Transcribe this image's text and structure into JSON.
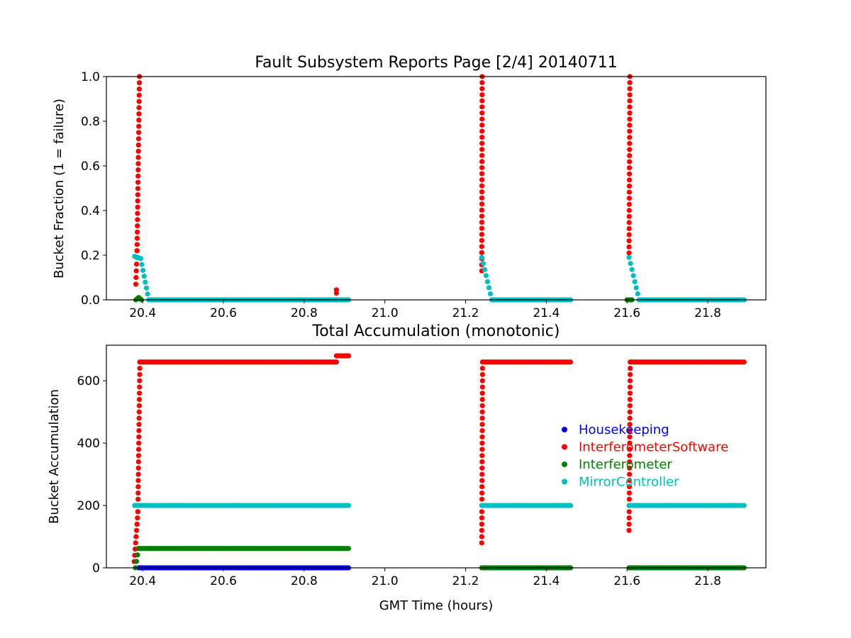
{
  "chart_data": [
    {
      "type": "scatter",
      "title": "Fault Subsystem Reports Page [2/4] 20140711",
      "xlabel": "",
      "ylabel": "Bucket Fraction (1 = failure)",
      "xlim": [
        20.31,
        21.944
      ],
      "ylim": [
        0,
        1.0
      ],
      "xticks": [
        "20.4",
        "20.6",
        "20.8",
        "21.0",
        "21.2",
        "21.4",
        "21.6",
        "21.8"
      ],
      "xtick_values": [
        20.4,
        20.6,
        20.8,
        21.0,
        21.2,
        21.4,
        21.6,
        21.8
      ],
      "yticks": [
        "0.0",
        "0.2",
        "0.4",
        "0.6",
        "0.8",
        "1.0"
      ],
      "ytick_values": [
        0,
        0.2,
        0.4,
        0.6,
        0.8,
        1.0
      ],
      "series": [
        {
          "name": "InterferometerSoftware",
          "color": "#ff0000",
          "segments": [
            [
              [
                20.383,
                0.07
              ],
              [
                20.386,
                0.22
              ],
              [
                20.392,
                1.0
              ]
            ],
            [
              [
                20.88,
                0.03
              ],
              [
                20.88,
                0.045
              ]
            ],
            [
              [
                21.24,
                0.13
              ],
              [
                21.241,
                1.0
              ]
            ],
            [
              [
                21.605,
                0.21
              ],
              [
                21.607,
                1.0
              ]
            ]
          ]
        },
        {
          "name": "MirrorController",
          "color": "#00bfbf",
          "segments": [
            [
              [
                20.38,
                0.195
              ],
              [
                20.395,
                0.185
              ],
              [
                20.415,
                0.0
              ],
              [
                20.91,
                0.0
              ]
            ],
            [
              [
                21.24,
                0.19
              ],
              [
                21.265,
                0.0
              ],
              [
                21.46,
                0.0
              ]
            ],
            [
              [
                21.605,
                0.19
              ],
              [
                21.63,
                0.0
              ],
              [
                21.89,
                0.0
              ]
            ]
          ]
        },
        {
          "name": "Interferometer",
          "color": "#008000",
          "segments": [
            [
              [
                20.383,
                0.0
              ],
              [
                20.39,
                0.01
              ],
              [
                20.397,
                0.0
              ]
            ],
            [
              [
                21.6,
                0.0
              ],
              [
                21.612,
                0.0
              ]
            ]
          ]
        }
      ]
    },
    {
      "type": "scatter",
      "title": "Total Accumulation (monotonic)",
      "xlabel": "GMT Time (hours)",
      "ylabel": "Bucket Accumulation",
      "xlim": [
        20.31,
        21.944
      ],
      "ylim": [
        0,
        714
      ],
      "xticks": [
        "20.4",
        "20.6",
        "20.8",
        "21.0",
        "21.2",
        "21.4",
        "21.6",
        "21.8"
      ],
      "xtick_values": [
        20.4,
        20.6,
        20.8,
        21.0,
        21.2,
        21.4,
        21.6,
        21.8
      ],
      "yticks": [
        "0",
        "200",
        "400",
        "600"
      ],
      "ytick_values": [
        0,
        200,
        400,
        600
      ],
      "legend": {
        "placement": "center-right",
        "entries": [
          "Housekeeping",
          "InterferometerSoftware",
          "Interferometer",
          "MirrorController"
        ]
      },
      "series": [
        {
          "name": "Housekeeping",
          "color": "#0000ff",
          "segments": [
            [
              [
                20.39,
                0
              ],
              [
                20.91,
                0
              ]
            ]
          ]
        },
        {
          "name": "InterferometerSoftware",
          "color": "#ff0000",
          "segments": [
            [
              [
                20.379,
                20
              ],
              [
                20.386,
                140
              ],
              [
                20.388,
                180
              ],
              [
                20.393,
                660
              ],
              [
                20.88,
                660
              ]
            ],
            [
              [
                20.88,
                680
              ],
              [
                20.91,
                680
              ]
            ],
            [
              [
                21.24,
                80
              ],
              [
                21.242,
                660
              ],
              [
                21.46,
                660
              ]
            ],
            [
              [
                21.605,
                120
              ],
              [
                21.608,
                660
              ],
              [
                21.89,
                660
              ]
            ]
          ]
        },
        {
          "name": "Interferometer",
          "color": "#008000",
          "segments": [
            [
              [
                20.382,
                0
              ],
              [
                20.39,
                62
              ],
              [
                20.91,
                62
              ]
            ],
            [
              [
                21.24,
                0
              ],
              [
                21.46,
                0
              ]
            ],
            [
              [
                21.605,
                0
              ],
              [
                21.89,
                0
              ]
            ]
          ]
        },
        {
          "name": "MirrorController",
          "color": "#00bfbf",
          "segments": [
            [
              [
                20.38,
                200
              ],
              [
                20.91,
                200
              ]
            ],
            [
              [
                21.24,
                200
              ],
              [
                21.46,
                200
              ]
            ],
            [
              [
                21.605,
                200
              ],
              [
                21.89,
                200
              ]
            ]
          ]
        }
      ]
    }
  ]
}
